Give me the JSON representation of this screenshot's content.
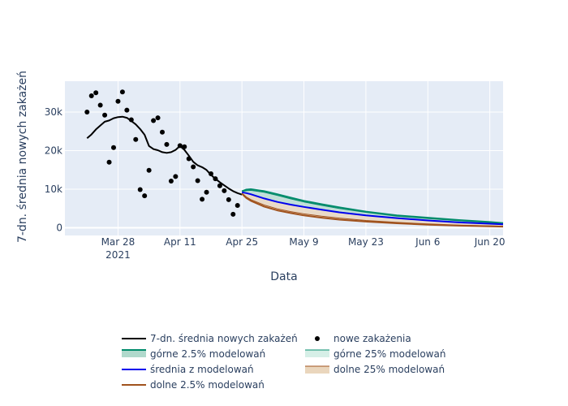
{
  "chart_data": {
    "type": "line",
    "xlabel": "Data",
    "ylabel": "7-dn. średnia nowych zakażeń",
    "grid": true,
    "legend_position": "bottom",
    "x_range": [
      "2021-03-16",
      "2021-06-23"
    ],
    "ylim": [
      -2000,
      38000
    ],
    "x_ticks": [
      {
        "date": "2021-03-28",
        "label": "Mar 28",
        "sublabel": "2021"
      },
      {
        "date": "2021-04-11",
        "label": "Apr 11"
      },
      {
        "date": "2021-04-25",
        "label": "Apr 25"
      },
      {
        "date": "2021-05-09",
        "label": "May 9"
      },
      {
        "date": "2021-05-23",
        "label": "May 23"
      },
      {
        "date": "2021-06-06",
        "label": "Jun 6"
      },
      {
        "date": "2021-06-20",
        "label": "Jun 20"
      }
    ],
    "y_ticks": [
      {
        "value": 0,
        "label": "0"
      },
      {
        "value": 10000,
        "label": "10k"
      },
      {
        "value": 20000,
        "label": "20k"
      },
      {
        "value": 30000,
        "label": "30k"
      }
    ],
    "colors": {
      "avg": "#000000",
      "points": "#000000",
      "upper25": "#008b6b",
      "mean": "#0000ee",
      "lower25": "#a0521d",
      "band_upper_fill": "#b0d9cc",
      "band_lower_fill": "#ead6bd"
    },
    "observed_points": {
      "name": "nowe zakażenia",
      "x": [
        "2021-03-21",
        "2021-03-22",
        "2021-03-23",
        "2021-03-24",
        "2021-03-25",
        "2021-03-26",
        "2021-03-27",
        "2021-03-28",
        "2021-03-29",
        "2021-03-30",
        "2021-03-31",
        "2021-04-01",
        "2021-04-02",
        "2021-04-03",
        "2021-04-04",
        "2021-04-05",
        "2021-04-06",
        "2021-04-07",
        "2021-04-08",
        "2021-04-09",
        "2021-04-10",
        "2021-04-11",
        "2021-04-12",
        "2021-04-13",
        "2021-04-14",
        "2021-04-15",
        "2021-04-16",
        "2021-04-17",
        "2021-04-18",
        "2021-04-19",
        "2021-04-20",
        "2021-04-21",
        "2021-04-22",
        "2021-04-23",
        "2021-04-24",
        "2021-04-25",
        "2021-04-26"
      ],
      "y": [
        30000,
        34200,
        35000,
        31800,
        29200,
        17000,
        20800,
        32800,
        35200,
        30500,
        28000,
        22900,
        9900,
        8300,
        14900,
        27800,
        28500,
        24800,
        21600,
        12100,
        13300,
        21300,
        21000,
        17900,
        15800,
        12200,
        7400,
        9200,
        14000,
        12700,
        10900,
        9600,
        7300,
        3500,
        5800,
        null,
        null
      ]
    },
    "series": [
      {
        "name": "7-dn. średnia nowych zakażeń",
        "x": [
          "2021-03-21",
          "2021-03-22",
          "2021-03-23",
          "2021-03-24",
          "2021-03-25",
          "2021-03-26",
          "2021-03-27",
          "2021-03-28",
          "2021-03-29",
          "2021-03-30",
          "2021-03-31",
          "2021-04-01",
          "2021-04-02",
          "2021-04-03",
          "2021-04-04",
          "2021-04-05",
          "2021-04-06",
          "2021-04-07",
          "2021-04-08",
          "2021-04-09",
          "2021-04-10",
          "2021-04-11",
          "2021-04-12",
          "2021-04-13",
          "2021-04-14",
          "2021-04-15",
          "2021-04-16",
          "2021-04-17",
          "2021-04-18",
          "2021-04-19",
          "2021-04-20",
          "2021-04-21",
          "2021-04-22",
          "2021-04-23",
          "2021-04-24",
          "2021-04-25"
        ],
        "y": [
          23200,
          24200,
          25500,
          26500,
          27500,
          27800,
          28400,
          28700,
          28800,
          28500,
          27700,
          26800,
          25600,
          24100,
          21200,
          20400,
          20100,
          19600,
          19400,
          19600,
          20200,
          21200,
          20200,
          18700,
          17100,
          16200,
          15700,
          15000,
          13700,
          12700,
          11800,
          11000,
          10200,
          9500,
          9000,
          8600
        ]
      },
      {
        "name": "górne 2.5% modelowań",
        "x": [
          "2021-04-25",
          "2021-04-26",
          "2021-04-27",
          "2021-04-30",
          "2021-05-03",
          "2021-05-06",
          "2021-05-09",
          "2021-05-13",
          "2021-05-17",
          "2021-05-23",
          "2021-05-30",
          "2021-06-06",
          "2021-06-13",
          "2021-06-20",
          "2021-06-23"
        ],
        "y": [
          9500,
          9900,
          10000,
          9500,
          8700,
          7800,
          7000,
          6100,
          5300,
          4200,
          3200,
          2600,
          2000,
          1500,
          1200
        ]
      },
      {
        "name": "górne 25% modelowań",
        "x": [
          "2021-04-25",
          "2021-04-26",
          "2021-04-27",
          "2021-04-30",
          "2021-05-03",
          "2021-05-06",
          "2021-05-09",
          "2021-05-13",
          "2021-05-17",
          "2021-05-23",
          "2021-05-30",
          "2021-06-06",
          "2021-06-13",
          "2021-06-20",
          "2021-06-23"
        ],
        "y": [
          9400,
          9600,
          9700,
          9200,
          8400,
          7500,
          6700,
          5800,
          5000,
          4000,
          3000,
          2400,
          1800,
          1350,
          1100
        ]
      },
      {
        "name": "średnia z modelowań",
        "x": [
          "2021-04-25",
          "2021-04-26",
          "2021-04-27",
          "2021-04-30",
          "2021-05-03",
          "2021-05-06",
          "2021-05-09",
          "2021-05-13",
          "2021-05-17",
          "2021-05-23",
          "2021-05-30",
          "2021-06-06",
          "2021-06-13",
          "2021-06-20",
          "2021-06-23"
        ],
        "y": [
          9200,
          9000,
          8700,
          7600,
          6700,
          6000,
          5400,
          4700,
          4000,
          3200,
          2500,
          1900,
          1400,
          1050,
          900
        ]
      },
      {
        "name": "dolne 25% modelowań",
        "x": [
          "2021-04-25",
          "2021-04-26",
          "2021-04-27",
          "2021-04-30",
          "2021-05-03",
          "2021-05-06",
          "2021-05-09",
          "2021-05-13",
          "2021-05-17",
          "2021-05-23",
          "2021-05-30",
          "2021-06-06",
          "2021-06-13",
          "2021-06-20",
          "2021-06-23"
        ],
        "y": [
          9000,
          8000,
          7300,
          5900,
          4900,
          4200,
          3600,
          3000,
          2500,
          1900,
          1400,
          1000,
          700,
          500,
          400
        ]
      },
      {
        "name": "dolne 2.5% modelowań",
        "x": [
          "2021-04-25",
          "2021-04-26",
          "2021-04-27",
          "2021-04-30",
          "2021-05-03",
          "2021-05-06",
          "2021-05-09",
          "2021-05-13",
          "2021-05-17",
          "2021-05-23",
          "2021-05-30",
          "2021-06-06",
          "2021-06-13",
          "2021-06-20",
          "2021-06-23"
        ],
        "y": [
          8800,
          7700,
          7000,
          5500,
          4500,
          3800,
          3200,
          2600,
          2100,
          1600,
          1150,
          800,
          550,
          380,
          300
        ]
      }
    ],
    "legend": [
      "7-dn. średnia nowych zakażeń",
      "nowe zakażenia",
      "górne 2.5% modelowań",
      "górne 25% modelowań",
      "średnia z modelowań",
      "dolne 25% modelowań",
      "dolne 2.5% modelowań"
    ]
  }
}
